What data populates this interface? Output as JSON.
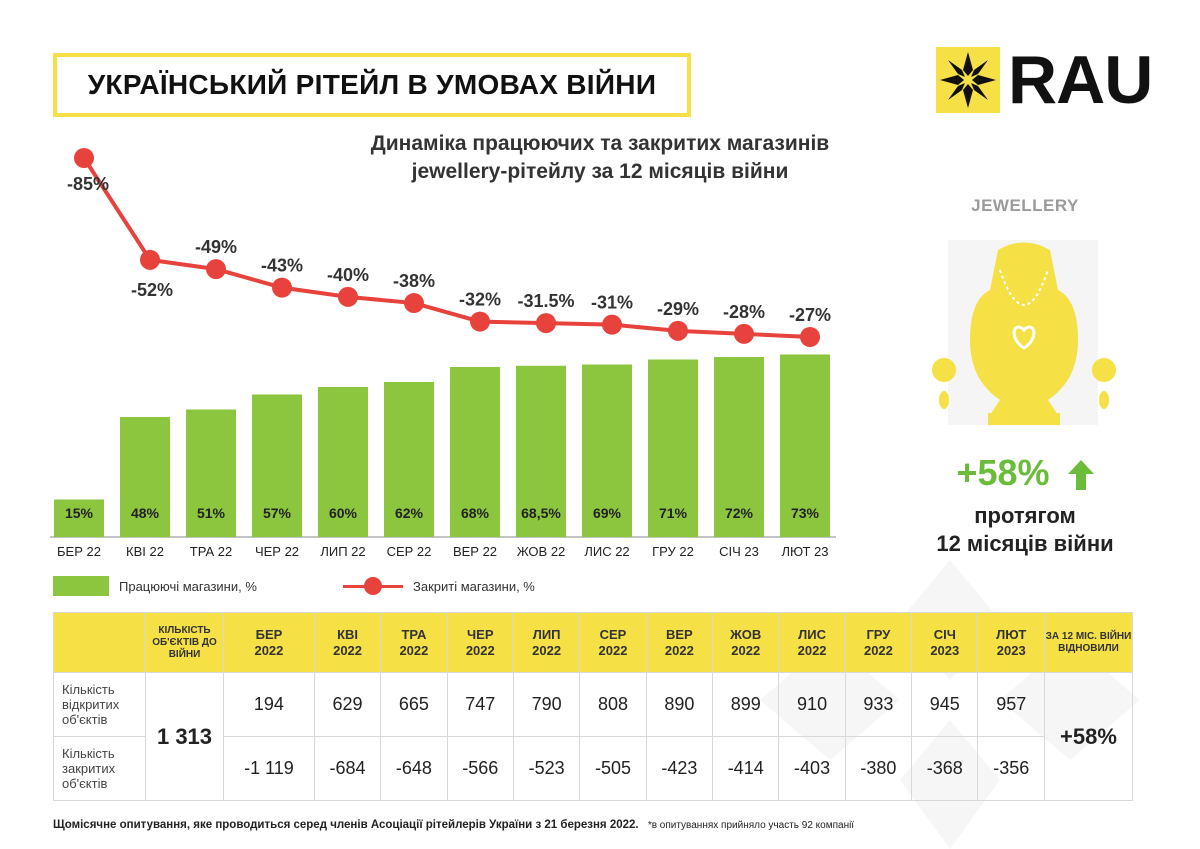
{
  "header": {
    "title": "УКРАЇНСЬКИЙ РІТЕЙЛ В УМОВАХ ВІЙНИ",
    "logo_text": "RAU"
  },
  "subtitle_line1": "Динаміка працюючих та закритих магазинів",
  "subtitle_line2": "jewellery-рітейлу за 12 місяців війни",
  "colors": {
    "bar": "#8cc63f",
    "line": "#e8423c",
    "accent": "#f5e046",
    "positive": "#6cbc3c"
  },
  "chart_data": {
    "type": "bar",
    "categories": [
      "БЕР 22",
      "КВІ 22",
      "ТРА 22",
      "ЧЕР 22",
      "ЛИП 22",
      "СЕР 22",
      "ВЕР 22",
      "ЖОВ 22",
      "ЛИС 22",
      "ГРУ 22",
      "СІЧ 23",
      "ЛЮТ 23"
    ],
    "series": [
      {
        "name": "Працюючі магазини, %",
        "type": "bar",
        "values": [
          15,
          48,
          51,
          57,
          60,
          62,
          68,
          68.5,
          69,
          71,
          72,
          73
        ],
        "labels": [
          "15%",
          "48%",
          "51%",
          "57%",
          "60%",
          "62%",
          "68%",
          "68,5%",
          "69%",
          "71%",
          "72%",
          "73%"
        ]
      },
      {
        "name": "Закриті магазини, %",
        "type": "line",
        "values": [
          -85,
          -52,
          -49,
          -43,
          -40,
          -38,
          -32,
          -31.5,
          -31,
          -29,
          -28,
          -27
        ],
        "labels": [
          "-85%",
          "-52%",
          "-49%",
          "-43%",
          "-40%",
          "-38%",
          "-32%",
          "-31.5%",
          "-31%",
          "-29%",
          "-28%",
          "-27%"
        ]
      }
    ],
    "legend_position": "bottom-left",
    "grid": false
  },
  "side": {
    "title": "JEWELLERY",
    "percent": "+58%",
    "caption_line1": "протягом",
    "caption_line2": "12 місяців війни"
  },
  "table": {
    "col_before": "КІЛЬКІСТЬ ОБ'ЄКТІВ ДО ВІЙНИ",
    "months": [
      [
        "БЕР",
        "2022"
      ],
      [
        "КВІ",
        "2022"
      ],
      [
        "ТРА",
        "2022"
      ],
      [
        "ЧЕР",
        "2022"
      ],
      [
        "ЛИП",
        "2022"
      ],
      [
        "СЕР",
        "2022"
      ],
      [
        "ВЕР",
        "2022"
      ],
      [
        "ЖОВ",
        "2022"
      ],
      [
        "ЛИС",
        "2022"
      ],
      [
        "ГРУ",
        "2022"
      ],
      [
        "СІЧ",
        "2023"
      ],
      [
        "ЛЮТ",
        "2023"
      ]
    ],
    "col_restored": "ЗА 12 МІС. ВІЙНИ ВІДНОВИЛИ",
    "row_open_label": "Кількість відкритих об'єктів",
    "row_closed_label": "Кількість закритих об'єктів",
    "before_war": "1 313",
    "open": [
      "194",
      "629",
      "665",
      "747",
      "790",
      "808",
      "890",
      "899",
      "910",
      "933",
      "945",
      "957"
    ],
    "closed": [
      "-1 119",
      "-684",
      "-648",
      "-566",
      "-523",
      "-505",
      "-423",
      "-414",
      "-403",
      "-380",
      "-368",
      "-356"
    ],
    "restored": "+58%"
  },
  "footer": {
    "text": "Щомісячне опитування, яке проводиться серед членів Асоціації рітейлерів України з 21 березня 2022.",
    "note": "*в опитуваннях прийняло участь 92 компанії"
  }
}
